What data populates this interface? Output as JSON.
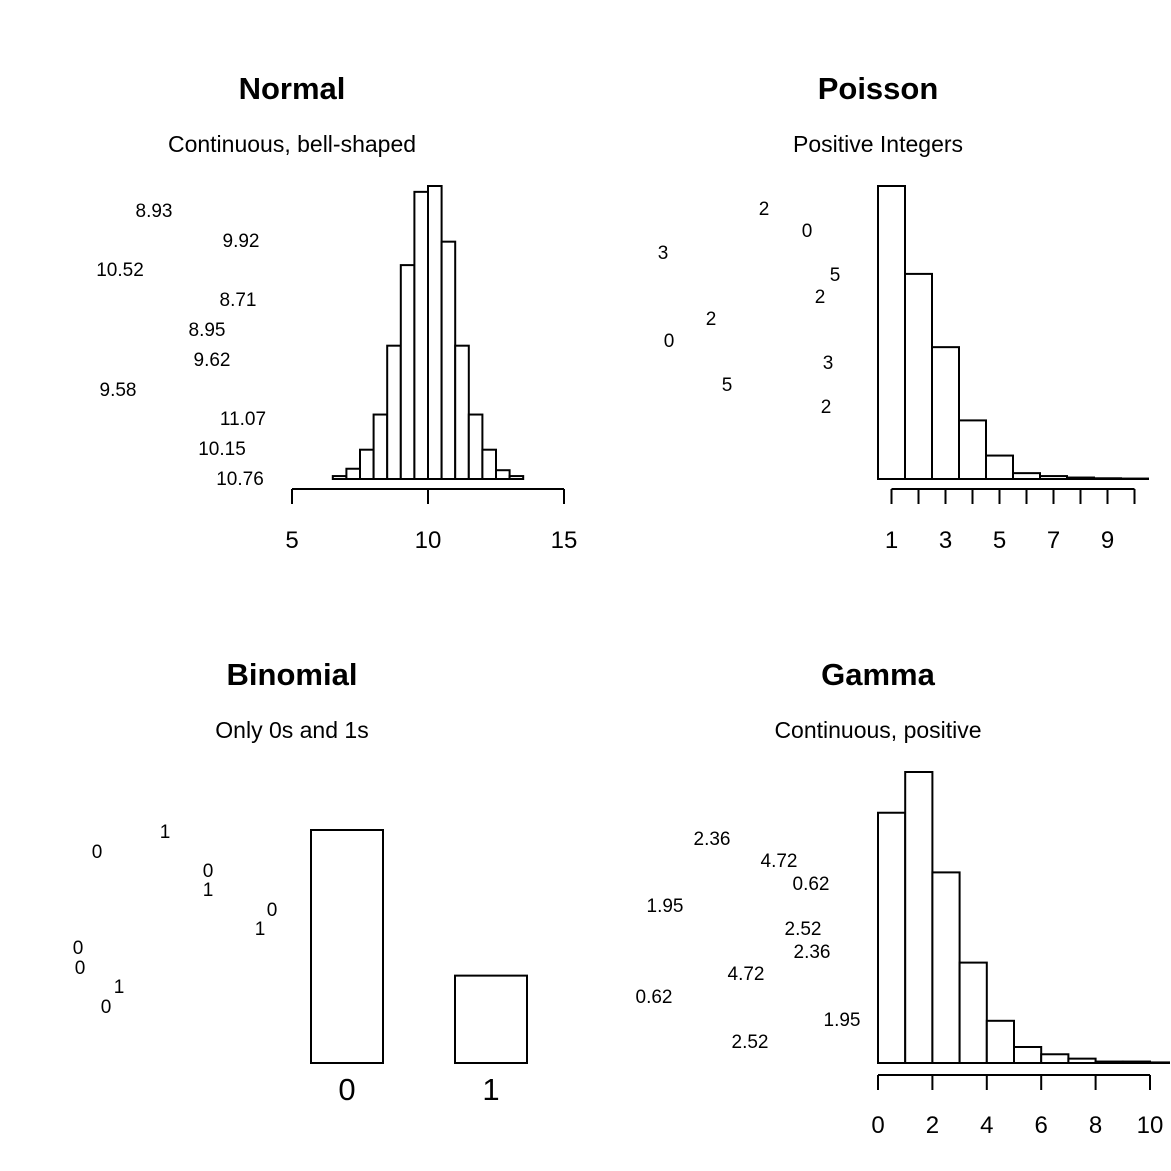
{
  "chart_data": [
    {
      "type": "histogram",
      "title": "Normal",
      "subtitle": "Continuous, bell-shaped",
      "x_ticks": [
        5,
        10,
        15
      ],
      "xlim": [
        5,
        15
      ],
      "bin_width": 0.5,
      "bin_start": 6.5,
      "counts": [
        2,
        7,
        20,
        44,
        91,
        146,
        196,
        200,
        162,
        91,
        44,
        20,
        6,
        2
      ],
      "sample_values": [
        "8.93",
        "9.92",
        "10.52",
        "8.71",
        "8.95",
        "9.62",
        "9.58",
        "11.07",
        "10.15",
        "10.76"
      ]
    },
    {
      "type": "histogram",
      "title": "Poisson",
      "subtitle": "Positive Integers",
      "x_ticks": [
        1,
        3,
        5,
        7,
        9
      ],
      "xlim": [
        0.5,
        10.5
      ],
      "bin_width": 1,
      "bin_start": 0.5,
      "counts": [
        200,
        140,
        90,
        40,
        16,
        4,
        2,
        1,
        0.5,
        0.3
      ],
      "sample_values": [
        "2",
        "0",
        "3",
        "5",
        "2",
        "2",
        "0",
        "3",
        "5",
        "2"
      ]
    },
    {
      "type": "bar",
      "title": "Binomial",
      "subtitle": "Only 0s and 1s",
      "categories": [
        "0",
        "1"
      ],
      "values": [
        160,
        60
      ],
      "sample_values": [
        "1",
        "0",
        "0",
        "1",
        "0",
        "1",
        "0",
        "0",
        "1",
        "0"
      ]
    },
    {
      "type": "histogram",
      "title": "Gamma",
      "subtitle": "Continuous, positive",
      "x_ticks": [
        0,
        2,
        4,
        6,
        8,
        10
      ],
      "xlim": [
        0,
        10
      ],
      "bin_width": 1,
      "bin_start": 0,
      "counts": [
        172,
        200,
        131,
        69,
        29,
        11,
        6,
        3,
        1,
        1,
        0.4
      ],
      "sample_values": [
        "2.36",
        "4.72",
        "0.62",
        "1.95",
        "2.52",
        "2.36",
        "4.72",
        "0.62",
        "1.95",
        "2.52"
      ]
    }
  ]
}
